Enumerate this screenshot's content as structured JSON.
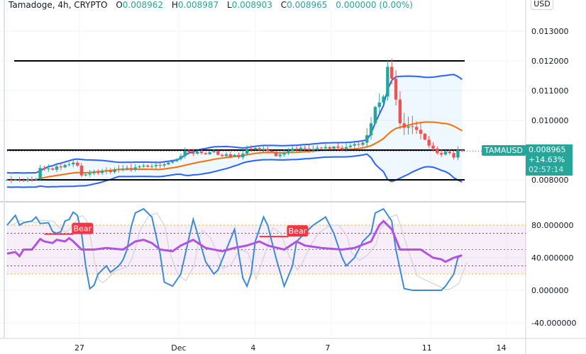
{
  "header": {
    "symbol": "Tamadoge, 4h, CRYPTO",
    "open_label": "O",
    "open": "0.008962",
    "high_label": "H",
    "high": "0.008987",
    "low_label": "L",
    "low": "0.008903",
    "close_label": "C",
    "close": "0.008965",
    "change": "0.000000 (0.00%)"
  },
  "currency_button": "USD",
  "last_price": {
    "ticker": "TAMAUSD",
    "price": "0.008965",
    "change_pct": "+14.63%",
    "countdown": "02:57:14"
  },
  "colors": {
    "up": "#26a69a",
    "down": "#ef5350",
    "bb_band": "#2962ff",
    "bb_basis": "#ff6d00",
    "rsi": "#b452e0",
    "stoch_k": "#3b8ad8",
    "bear": "#f23645"
  },
  "indicator_labels": {
    "bear_1": "Bear",
    "bear_2": "Bear"
  },
  "chart_data": [
    {
      "type": "candlestick",
      "interval": "4h",
      "ylim": [
        0.0076,
        0.0134
      ],
      "y_ticks": [
        "0.013000",
        "0.012000",
        "0.011000",
        "0.010000",
        "0.008000"
      ],
      "x_ticks": [
        "27",
        "Dec",
        "4",
        "7",
        "11",
        "14"
      ],
      "x_tick_candle_index": [
        17.5,
        41.5,
        59.5,
        77.5,
        101.5,
        119.5
      ],
      "closes": [
        0.008,
        0.00798,
        0.00801,
        0.00799,
        0.00797,
        0.00802,
        0.008,
        0.00803,
        0.0084,
        0.00836,
        0.00838,
        0.00834,
        0.00845,
        0.00842,
        0.0085,
        0.00852,
        0.00858,
        0.00848,
        0.00815,
        0.00818,
        0.00822,
        0.00826,
        0.00823,
        0.00828,
        0.0083,
        0.00826,
        0.00834,
        0.00836,
        0.00838,
        0.0084,
        0.00836,
        0.00842,
        0.00845,
        0.00848,
        0.00844,
        0.00846,
        0.0085,
        0.00848,
        0.00852,
        0.00858,
        0.00862,
        0.0087,
        0.0088,
        0.00898,
        0.00892,
        0.00888,
        0.00895,
        0.0089,
        0.00886,
        0.00893,
        0.00897,
        0.00884,
        0.0088,
        0.00886,
        0.00878,
        0.00884,
        0.00876,
        0.00888,
        0.00905,
        0.00902,
        0.00907,
        0.009,
        0.00904,
        0.00898,
        0.00894,
        0.0088,
        0.00885,
        0.0089,
        0.00898,
        0.00905,
        0.00901,
        0.00908,
        0.00905,
        0.009,
        0.00904,
        0.00908,
        0.00906,
        0.0091,
        0.00905,
        0.00912,
        0.00908,
        0.00903,
        0.0091,
        0.00915,
        0.0092,
        0.00918,
        0.00925,
        0.0095,
        0.0099,
        0.01045,
        0.0106,
        0.0108,
        0.0118,
        0.0114,
        0.0107,
        0.0099,
        0.00975,
        0.0098,
        0.00978,
        0.00968,
        0.00955,
        0.00935,
        0.00915,
        0.00905,
        0.0089,
        0.00885,
        0.00895,
        0.0089,
        0.00875,
        0.009,
        0.00897
      ],
      "horizontal_levels": [
        0.012,
        0.009,
        0.008
      ],
      "overlay": "Bollinger Bands"
    },
    {
      "type": "line",
      "ylim": [
        -50,
        105
      ],
      "y_ticks": [
        "80.000000",
        "40.000000",
        "0.000000",
        "-40.000000"
      ],
      "bands": [
        80,
        20
      ],
      "stoch_k": [
        [
          0,
          80
        ],
        [
          2,
          92
        ],
        [
          3,
          80
        ],
        [
          4,
          83
        ],
        [
          6,
          85
        ],
        [
          7,
          90
        ],
        [
          8,
          82
        ],
        [
          10,
          83
        ],
        [
          11,
          72
        ],
        [
          12,
          70
        ],
        [
          13,
          72
        ],
        [
          14,
          85
        ],
        [
          15,
          87
        ],
        [
          16,
          96
        ],
        [
          17,
          92
        ],
        [
          18,
          70
        ],
        [
          19,
          30
        ],
        [
          20,
          2
        ],
        [
          21,
          6
        ],
        [
          22,
          20
        ],
        [
          24,
          30
        ],
        [
          25,
          22
        ],
        [
          27,
          30
        ],
        [
          28,
          37
        ],
        [
          29,
          50
        ],
        [
          30,
          78
        ],
        [
          31,
          95
        ],
        [
          33,
          100
        ],
        [
          35,
          90
        ],
        [
          37,
          45
        ],
        [
          38,
          10
        ],
        [
          40,
          5
        ],
        [
          42,
          20
        ],
        [
          44,
          65
        ],
        [
          45,
          87
        ],
        [
          46,
          70
        ],
        [
          48,
          35
        ],
        [
          50,
          20
        ],
        [
          51,
          25
        ],
        [
          53,
          50
        ],
        [
          55,
          75
        ],
        [
          57,
          15
        ],
        [
          58,
          5
        ],
        [
          59,
          20
        ],
        [
          60,
          60
        ],
        [
          62,
          90
        ],
        [
          63,
          80
        ],
        [
          65,
          40
        ],
        [
          67,
          5
        ],
        [
          69,
          30
        ],
        [
          70,
          60
        ],
        [
          72,
          70
        ],
        [
          74,
          80
        ],
        [
          77,
          90
        ],
        [
          79,
          70
        ],
        [
          81,
          40
        ],
        [
          82,
          30
        ],
        [
          84,
          40
        ],
        [
          86,
          60
        ],
        [
          88,
          70
        ],
        [
          89,
          95
        ],
        [
          91,
          100
        ],
        [
          93,
          85
        ],
        [
          94,
          50
        ],
        [
          96,
          2
        ],
        [
          98,
          0
        ],
        [
          105,
          0
        ],
        [
          106,
          5
        ],
        [
          108,
          20
        ],
        [
          109,
          40
        ],
        [
          110,
          43
        ]
      ],
      "rsi": [
        [
          0,
          45
        ],
        [
          2,
          47
        ],
        [
          3,
          42
        ],
        [
          4,
          50
        ],
        [
          6,
          50
        ],
        [
          8,
          63
        ],
        [
          9,
          60
        ],
        [
          11,
          58
        ],
        [
          12,
          62
        ],
        [
          14,
          60
        ],
        [
          15,
          64
        ],
        [
          16,
          60
        ],
        [
          18,
          50
        ],
        [
          21,
          50
        ],
        [
          24,
          52
        ],
        [
          28,
          50
        ],
        [
          31,
          60
        ],
        [
          33,
          62
        ],
        [
          35,
          58
        ],
        [
          37,
          50
        ],
        [
          40,
          48
        ],
        [
          42,
          55
        ],
        [
          45,
          62
        ],
        [
          48,
          52
        ],
        [
          52,
          48
        ],
        [
          55,
          52
        ],
        [
          58,
          55
        ],
        [
          61,
          60
        ],
        [
          63,
          55
        ],
        [
          67,
          50
        ],
        [
          70,
          60
        ],
        [
          72,
          55
        ],
        [
          76,
          52
        ],
        [
          81,
          50
        ],
        [
          84,
          52
        ],
        [
          88,
          60
        ],
        [
          90,
          80
        ],
        [
          91,
          85
        ],
        [
          93,
          75
        ],
        [
          95,
          50
        ],
        [
          100,
          50
        ],
        [
          103,
          40
        ],
        [
          105,
          38
        ],
        [
          106,
          35
        ],
        [
          108,
          40
        ],
        [
          110,
          43
        ]
      ],
      "bear_signals": [
        {
          "from": 9,
          "to": 16,
          "rsi": 63
        },
        {
          "from": 61,
          "to": 68,
          "rsi": 60
        }
      ]
    }
  ]
}
